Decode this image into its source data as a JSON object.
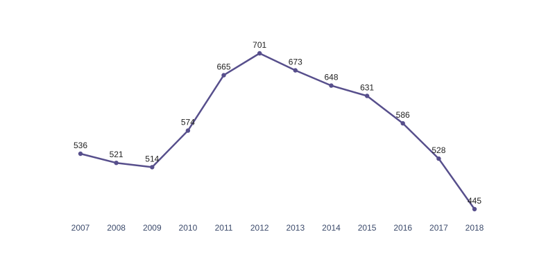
{
  "chart_data": {
    "type": "line",
    "categories": [
      "2007",
      "2008",
      "2009",
      "2010",
      "2011",
      "2012",
      "2013",
      "2014",
      "2015",
      "2016",
      "2017",
      "2018"
    ],
    "series": [
      {
        "values": [
          536,
          521,
          514,
          574,
          665,
          701,
          673,
          648,
          631,
          586,
          528,
          445
        ],
        "color": "#574f8c"
      }
    ],
    "data_labels": [
      "536",
      "521",
      "514",
      "574",
      "665",
      "701",
      "673",
      "648",
      "631",
      "586",
      "528",
      "445"
    ],
    "title": "",
    "xlabel": "",
    "ylabel": "",
    "ylim": [
      445,
      701
    ],
    "grid": false,
    "legend": "none",
    "colors": {
      "line": "#574f8c",
      "tick_text": "#3b4a6b",
      "label_text": "#222222"
    }
  }
}
